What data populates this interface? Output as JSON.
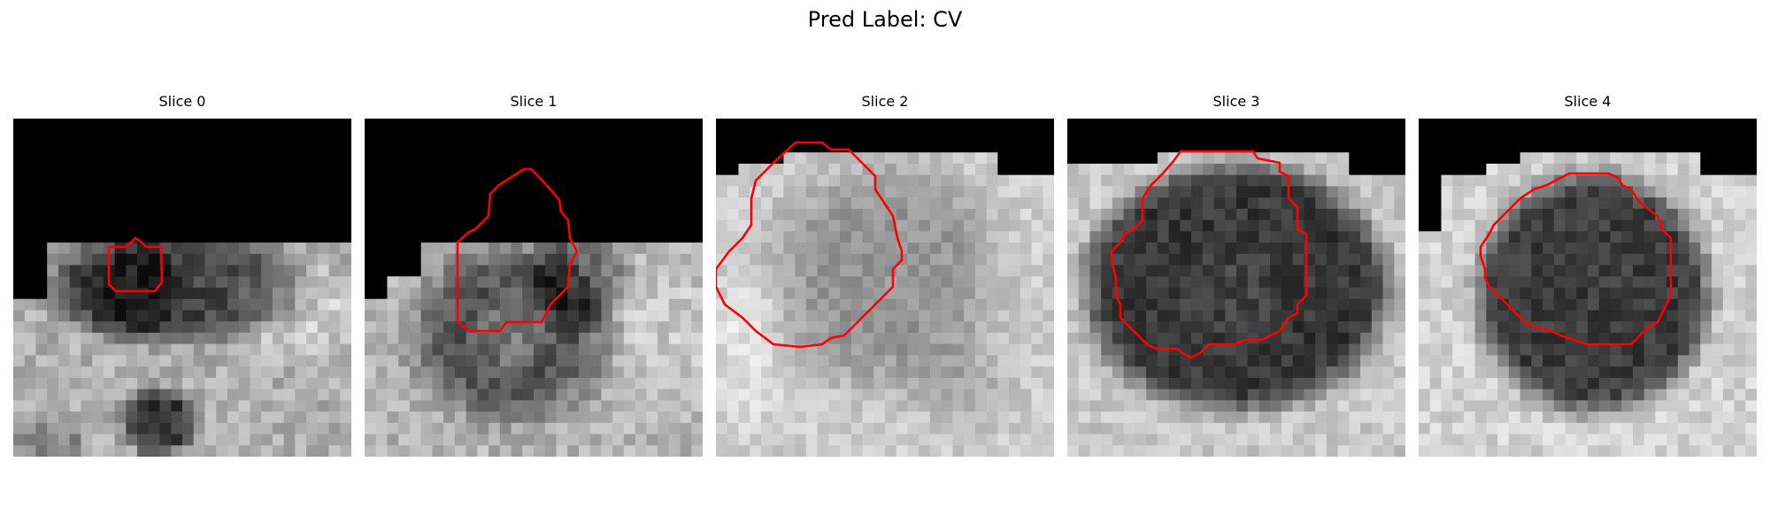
{
  "figure": {
    "title": "Pred Label: CV",
    "contour_color": "#ff0000"
  },
  "panels": [
    {
      "title": "Slice 0"
    },
    {
      "title": "Slice 1"
    },
    {
      "title": "Slice 2"
    },
    {
      "title": "Slice 3"
    },
    {
      "title": "Slice 4"
    }
  ]
}
